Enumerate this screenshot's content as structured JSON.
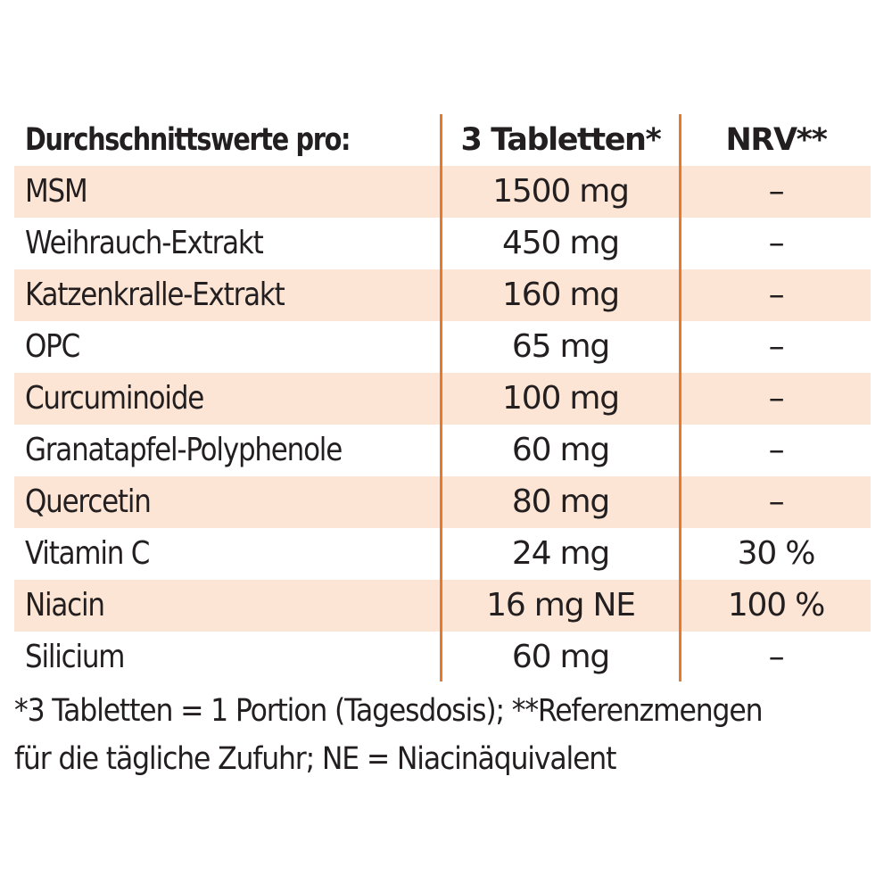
{
  "header": {
    "name": "Durchschnittswerte pro:",
    "amount": "3 Tabletten*",
    "nrv": "NRV**"
  },
  "rows": [
    {
      "name": "MSM",
      "amount": "1500 mg",
      "nrv": "–"
    },
    {
      "name": "Weihrauch-Extrakt",
      "amount": "450 mg",
      "nrv": "–"
    },
    {
      "name": "Katzenkralle-Extrakt",
      "amount": "160 mg",
      "nrv": "–"
    },
    {
      "name": "OPC",
      "amount": "65 mg",
      "nrv": "–"
    },
    {
      "name": "Curcuminoide",
      "amount": "100 mg",
      "nrv": "–"
    },
    {
      "name": "Granatapfel-Polyphenole",
      "amount": "60 mg",
      "nrv": "–"
    },
    {
      "name": "Quercetin",
      "amount": "80 mg",
      "nrv": "–"
    },
    {
      "name": "Vitamin C",
      "amount": "24 mg",
      "nrv": "30 %"
    },
    {
      "name": "Niacin",
      "amount": "16 mg NE",
      "nrv": "100 %"
    },
    {
      "name": "Silicium",
      "amount": "60 mg",
      "nrv": "–"
    }
  ],
  "footnote": {
    "line1": "*3 Tabletten = 1 Portion (Tagesdosis); **Referenzmengen",
    "line2": "für die tägliche Zufuhr; NE = Niacinäquivalent"
  },
  "colors": {
    "row_shade": "#fce5d4",
    "divider": "#e8782a",
    "text": "#231f20"
  }
}
